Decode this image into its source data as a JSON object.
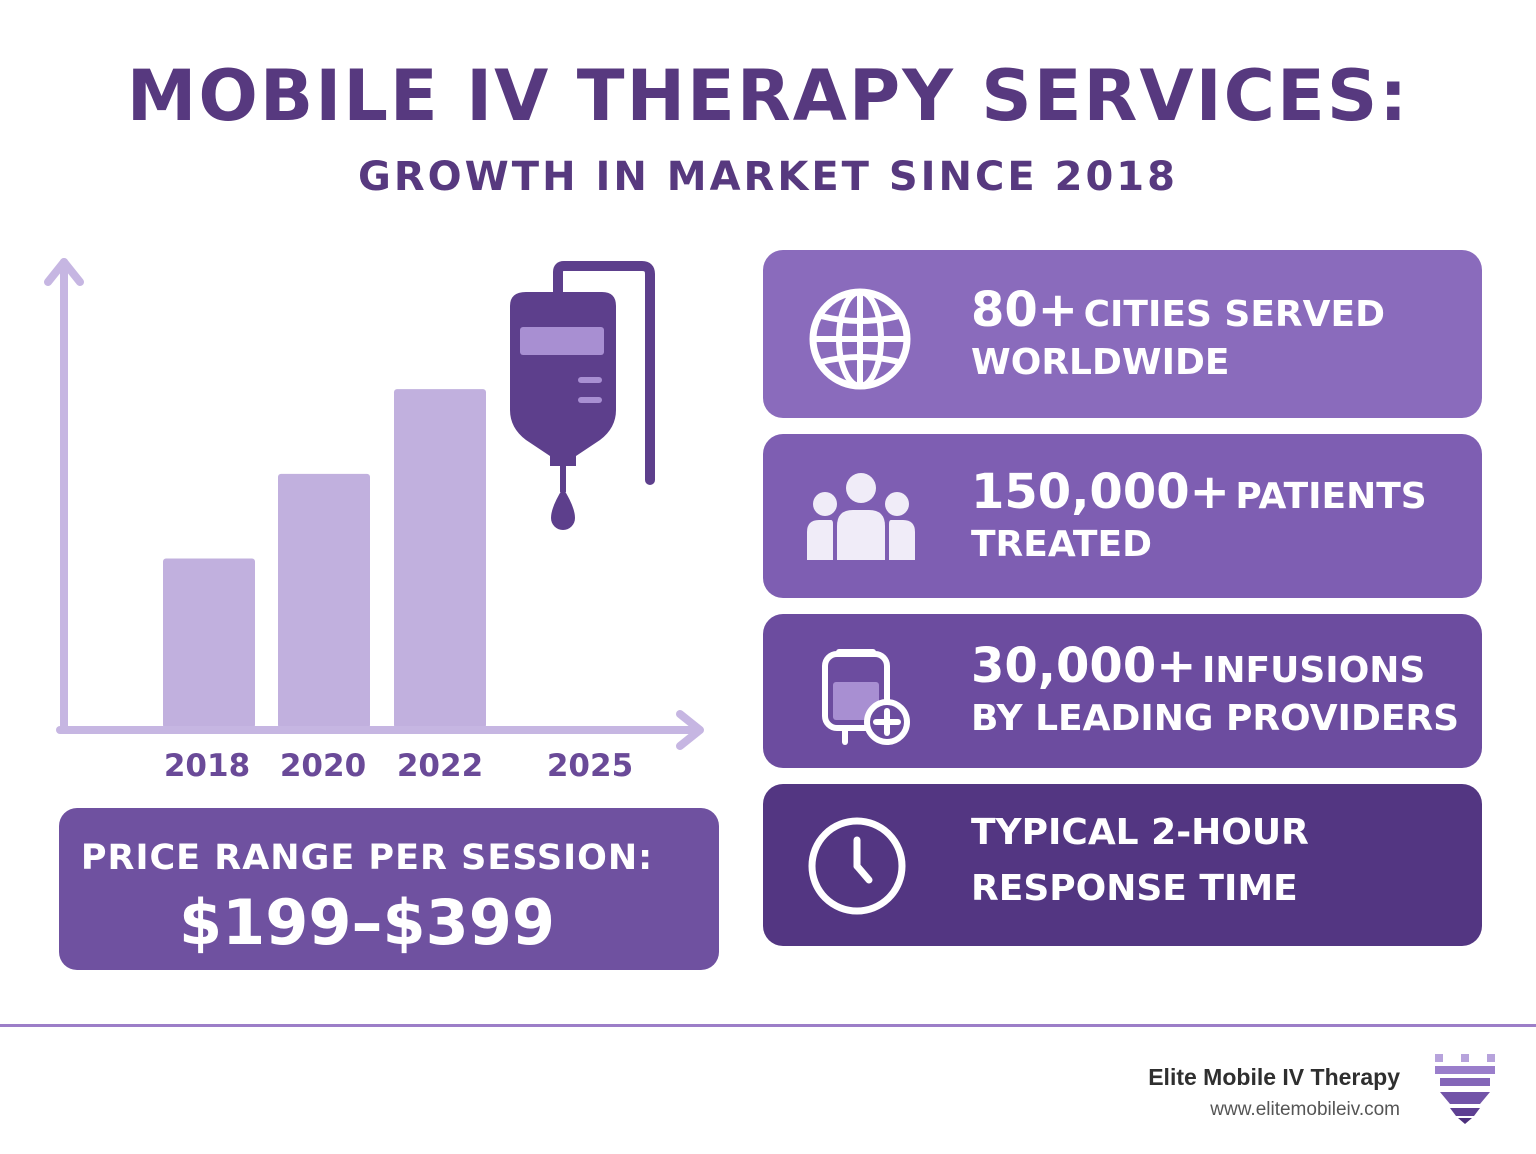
{
  "header": {
    "title": "MOBILE IV THERAPY SERVICES:",
    "subtitle": "GROWTH IN MARKET SINCE 2018"
  },
  "chart_data": {
    "type": "bar",
    "categories": [
      "2018",
      "2020",
      "2022",
      "2025"
    ],
    "values": [
      2,
      3,
      4,
      null
    ],
    "title": "",
    "xlabel": "",
    "ylabel": "",
    "ylim": [
      0,
      5.5
    ],
    "grid": false,
    "legend": "none",
    "color": "#c1b0de",
    "axis_color": "#c6b6e2"
  },
  "chart_icon": "iv-bag-icon",
  "price": {
    "label": "PRICE RANGE PER SESSION:",
    "value": "$199–$399"
  },
  "stats": [
    {
      "icon": "globe-icon",
      "highlight": "80+",
      "rest": "CITIES SERVED",
      "line2": "WORLDWIDE",
      "color": "#8a6bbc"
    },
    {
      "icon": "people-icon",
      "highlight": "150,000+",
      "rest": "PATIENTS",
      "line2": "TREATED",
      "color": "#7e5eb2"
    },
    {
      "icon": "iv-bag-plus-icon",
      "highlight": "30,000+",
      "rest": "INFUSIONS",
      "line2": "BY LEADING PROVIDERS",
      "color": "#6c4c9f"
    },
    {
      "icon": "clock-icon",
      "highlight": "",
      "rest": "TYPICAL 2-HOUR",
      "line2": "RESPONSE TIME",
      "color": "#533682"
    }
  ],
  "footer": {
    "brand": "Elite Mobile IV Therapy",
    "url": "www.elitemobileiv.com",
    "logo": "crown-logo-icon",
    "divider_color": "#9c7ec8"
  }
}
